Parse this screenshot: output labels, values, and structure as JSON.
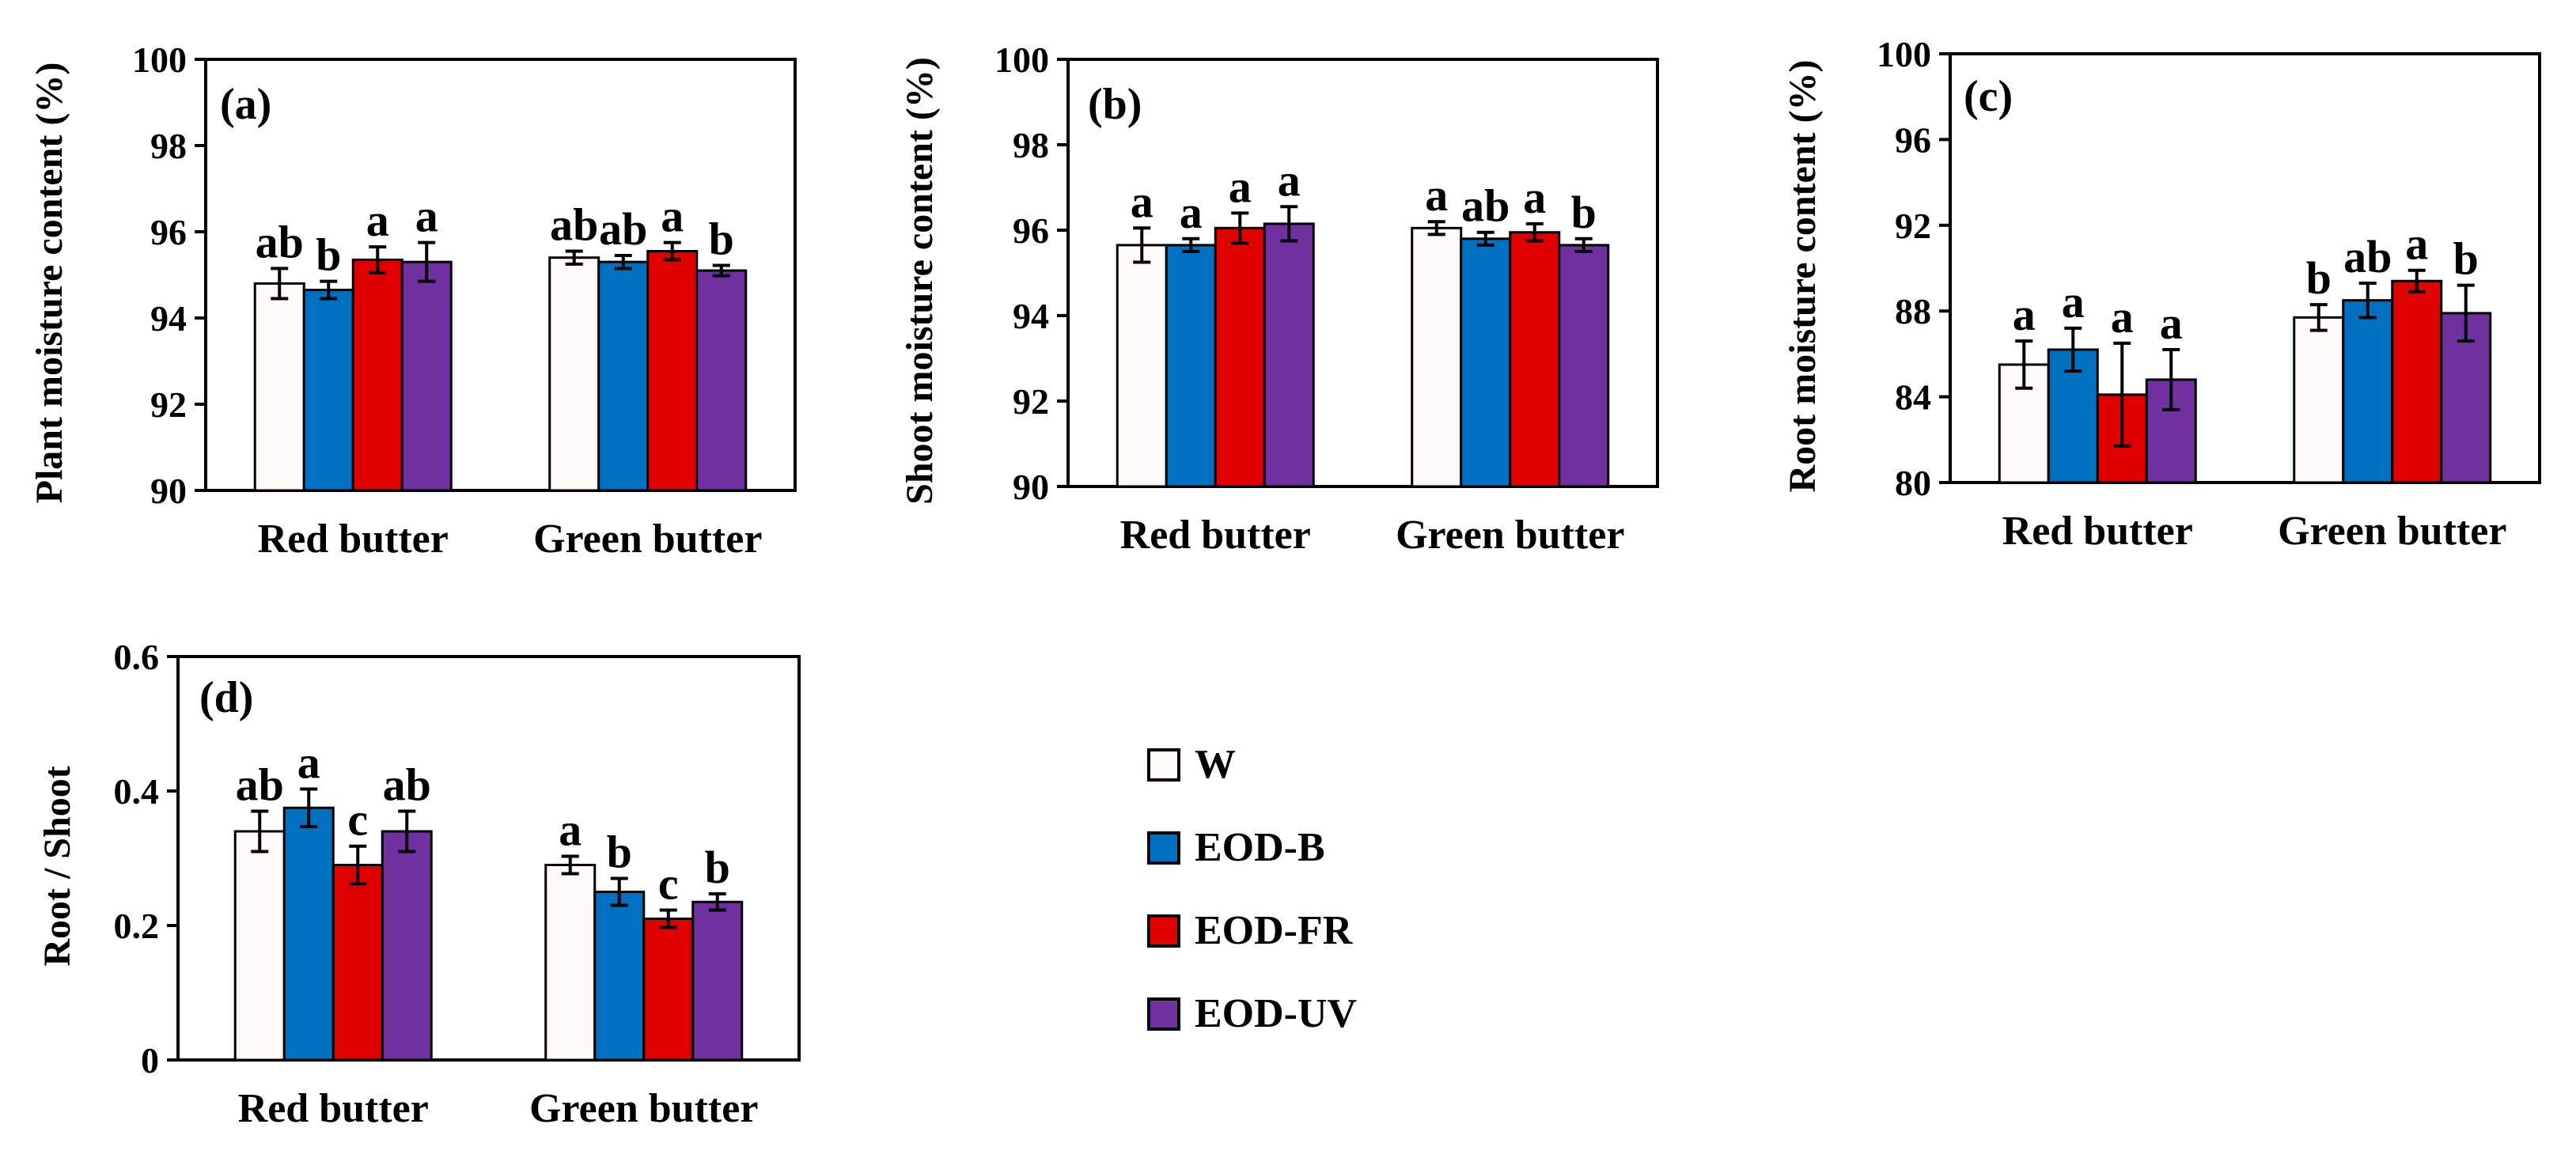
{
  "legend": {
    "items": [
      {
        "label": "W",
        "color": "#FFFAF7"
      },
      {
        "label": "EOD-B",
        "color": "#0070C0"
      },
      {
        "label": "EOD-FR",
        "color": "#E00000"
      },
      {
        "label": "EOD-UV",
        "color": "#7030A0"
      }
    ]
  },
  "chart_data": [
    {
      "type": "bar",
      "panel": "(a)",
      "ylabel": "Plant moisture content (%)",
      "ylim": [
        90,
        100
      ],
      "yticks": [
        "90",
        "92",
        "94",
        "96",
        "98",
        "100"
      ],
      "categories": [
        "Red butter",
        "Green butter"
      ],
      "series": [
        {
          "name": "W",
          "values": [
            94.8,
            95.4
          ],
          "errors": [
            0.35,
            0.15
          ],
          "letters": [
            "ab",
            "ab"
          ]
        },
        {
          "name": "EOD-B",
          "values": [
            94.65,
            95.3
          ],
          "errors": [
            0.2,
            0.15
          ],
          "letters": [
            "b",
            "ab"
          ]
        },
        {
          "name": "EOD-FR",
          "values": [
            95.35,
            95.55
          ],
          "errors": [
            0.3,
            0.2
          ],
          "letters": [
            "a",
            "a"
          ]
        },
        {
          "name": "EOD-UV",
          "values": [
            95.3,
            95.1
          ],
          "errors": [
            0.45,
            0.12
          ],
          "letters": [
            "a",
            "b"
          ]
        }
      ]
    },
    {
      "type": "bar",
      "panel": "(b)",
      "ylabel": "Shoot moisture content (%)",
      "ylim": [
        90,
        100
      ],
      "yticks": [
        "90",
        "92",
        "94",
        "96",
        "98",
        "100"
      ],
      "categories": [
        "Red butter",
        "Green butter"
      ],
      "series": [
        {
          "name": "W",
          "values": [
            95.65,
            96.05
          ],
          "errors": [
            0.4,
            0.15
          ],
          "letters": [
            "a",
            "a"
          ]
        },
        {
          "name": "EOD-B",
          "values": [
            95.65,
            95.8
          ],
          "errors": [
            0.15,
            0.15
          ],
          "letters": [
            "a",
            "ab"
          ]
        },
        {
          "name": "EOD-FR",
          "values": [
            96.05,
            95.95
          ],
          "errors": [
            0.35,
            0.2
          ],
          "letters": [
            "a",
            "a"
          ]
        },
        {
          "name": "EOD-UV",
          "values": [
            96.15,
            95.65
          ],
          "errors": [
            0.4,
            0.15
          ],
          "letters": [
            "a",
            "b"
          ]
        }
      ]
    },
    {
      "type": "bar",
      "panel": "(c)",
      "ylabel": "Root moisture content (%)",
      "ylim": [
        80,
        100
      ],
      "yticks": [
        "80",
        "84",
        "88",
        "92",
        "96",
        "100"
      ],
      "categories": [
        "Red butter",
        "Green butter"
      ],
      "series": [
        {
          "name": "W",
          "values": [
            85.5,
            87.7
          ],
          "errors": [
            1.1,
            0.6
          ],
          "letters": [
            "a",
            "b"
          ]
        },
        {
          "name": "EOD-B",
          "values": [
            86.2,
            88.5
          ],
          "errors": [
            1.0,
            0.8
          ],
          "letters": [
            "a",
            "ab"
          ]
        },
        {
          "name": "EOD-FR",
          "values": [
            84.1,
            89.4
          ],
          "errors": [
            2.4,
            0.5
          ],
          "letters": [
            "a",
            "a"
          ]
        },
        {
          "name": "EOD-UV",
          "values": [
            84.8,
            87.9
          ],
          "errors": [
            1.4,
            1.3
          ],
          "letters": [
            "a",
            "b"
          ]
        }
      ]
    },
    {
      "type": "bar",
      "panel": "(d)",
      "ylabel": "Root / Shoot",
      "ylim": [
        0,
        0.6
      ],
      "yticks": [
        "0",
        "0.2",
        "0.4",
        "0.6"
      ],
      "categories": [
        "Red butter",
        "Green butter"
      ],
      "series": [
        {
          "name": "W",
          "values": [
            0.34,
            0.29
          ],
          "errors": [
            0.03,
            0.013
          ],
          "letters": [
            "ab",
            "a"
          ]
        },
        {
          "name": "EOD-B",
          "values": [
            0.375,
            0.25
          ],
          "errors": [
            0.028,
            0.02
          ],
          "letters": [
            "a",
            "b"
          ]
        },
        {
          "name": "EOD-FR",
          "values": [
            0.29,
            0.21
          ],
          "errors": [
            0.028,
            0.013
          ],
          "letters": [
            "c",
            "c"
          ]
        },
        {
          "name": "EOD-UV",
          "values": [
            0.34,
            0.235
          ],
          "errors": [
            0.03,
            0.012
          ],
          "letters": [
            "ab",
            "b"
          ]
        }
      ]
    }
  ]
}
